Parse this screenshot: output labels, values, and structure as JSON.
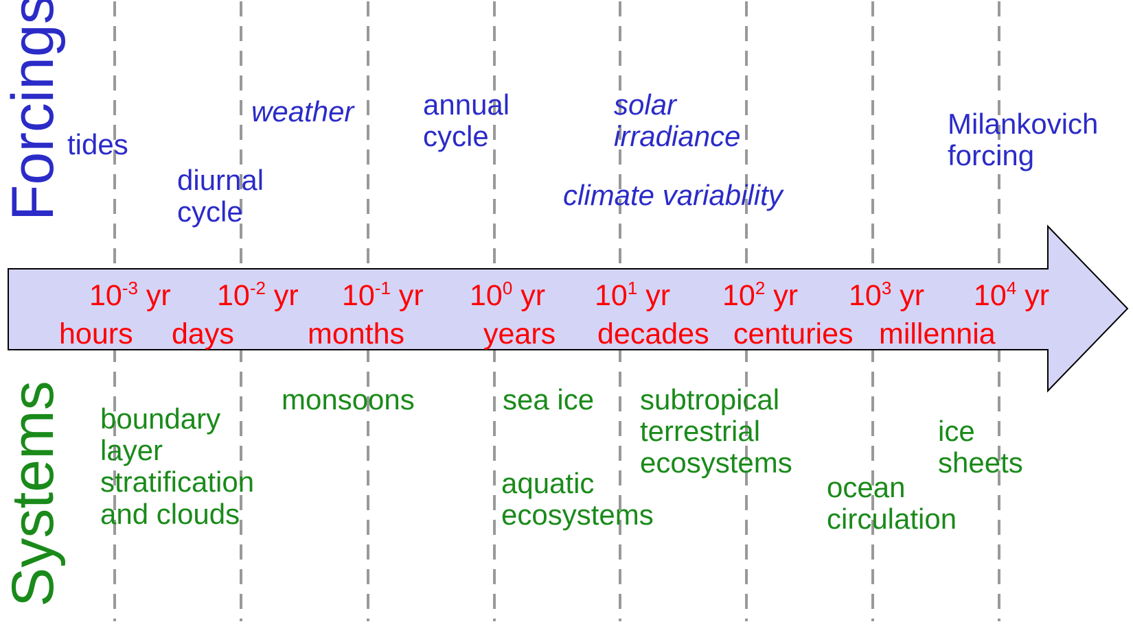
{
  "side_labels": {
    "forcings": "Forcings",
    "systems": "Systems"
  },
  "scales": [
    {
      "base": "10",
      "exp": "-3",
      "unit": "yr",
      "period": "hours"
    },
    {
      "base": "10",
      "exp": "-2",
      "unit": "yr",
      "period": "days"
    },
    {
      "base": "10",
      "exp": "-1",
      "unit": "yr",
      "period": "months"
    },
    {
      "base": "10",
      "exp": "0",
      "unit": "yr",
      "period": "years"
    },
    {
      "base": "10",
      "exp": "1",
      "unit": "yr",
      "period": "decades"
    },
    {
      "base": "10",
      "exp": "2",
      "unit": "yr",
      "period": "centuries"
    },
    {
      "base": "10",
      "exp": "3",
      "unit": "yr",
      "period": "millennia"
    },
    {
      "base": "10",
      "exp": "4",
      "unit": "yr",
      "period": ""
    }
  ],
  "forcings": {
    "tides": [
      "tides"
    ],
    "diurnal_cycle": [
      "diurnal",
      "cycle"
    ],
    "weather": [
      "weather"
    ],
    "annual_cycle": [
      "annual",
      "cycle"
    ],
    "solar_irradiance": [
      "solar",
      "irradiance"
    ],
    "climate_variability": [
      "climate variability"
    ],
    "milankovich_forcing": [
      "Milankovich",
      "forcing"
    ]
  },
  "systems": {
    "boundary_layer": [
      "boundary",
      "layer",
      "stratification",
      "and clouds"
    ],
    "monsoons": [
      "monsoons"
    ],
    "sea_ice": [
      "sea ice"
    ],
    "aquatic_ecosystems": [
      "aquatic",
      "ecosystems"
    ],
    "subtropical_ecosystems": [
      "subtropical",
      "terrestrial",
      "ecosystems"
    ],
    "ocean_circulation": [
      "ocean",
      "circulation"
    ],
    "ice_sheets": [
      "ice",
      "sheets"
    ]
  },
  "colors": {
    "forcing": "#2b2bc8",
    "system": "#1a8a1a",
    "scale": "#ff0000",
    "arrow_fill": "#d4d4f7",
    "grid": "#999999"
  }
}
